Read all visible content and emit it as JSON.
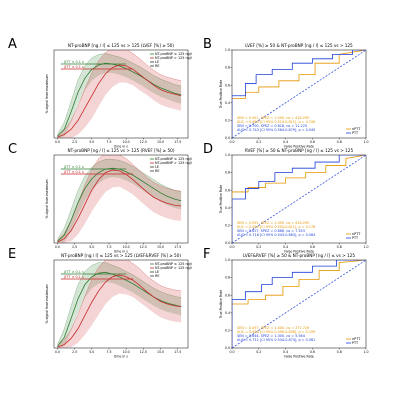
{
  "chart_data": [
    {
      "id": "A",
      "type": "line",
      "panel_label": "A",
      "title": "NT-proBNP [ng / l] ≤ 125 vs > 125 (LVEF [%] ≥ 50)",
      "xlabel": "time in s",
      "ylabel": "% signal from maximum",
      "xlim": [
        -0.5,
        19
      ],
      "ylim": [
        0,
        100
      ],
      "xticks": [
        "0.0",
        "2.5",
        "5.0",
        "7.5",
        "10.0",
        "12.5",
        "15.0",
        "17.5"
      ],
      "legend": {
        "position": "top-right",
        "entries": [
          "NT-proBNP ≤ 125 ng/l",
          "NT-proBNP > 125 ng/l",
          "LE",
          "RE"
        ]
      },
      "annotations": [
        "βTT ± 0.1 s",
        "βTT ± 0.1 s"
      ],
      "series": [
        {
          "name": "NT-proBNP ≤ 125 ng/l",
          "color": "#2e7d32",
          "x": [
            0,
            1,
            2,
            3,
            4,
            5,
            6,
            7,
            8,
            9,
            10,
            11,
            12,
            13,
            14,
            15,
            16,
            17,
            18
          ],
          "y": [
            2,
            10,
            30,
            52,
            68,
            78,
            83,
            85,
            84,
            82,
            79,
            75,
            71,
            66,
            61,
            57,
            54,
            51,
            49
          ],
          "band_width": [
            2,
            8,
            12,
            14,
            14,
            13,
            12,
            11,
            10,
            10,
            10,
            10,
            10,
            10,
            10,
            10,
            10,
            10,
            10
          ]
        },
        {
          "name": "NT-proBNP > 125 ng/l",
          "color": "#c62828",
          "x": [
            0,
            1,
            2,
            3,
            4,
            5,
            6,
            7,
            8,
            9,
            10,
            11,
            12,
            13,
            14,
            15,
            16,
            17,
            18
          ],
          "y": [
            1,
            4,
            10,
            20,
            34,
            48,
            62,
            73,
            80,
            83,
            82,
            78,
            72,
            66,
            60,
            55,
            52,
            50,
            48
          ],
          "band_width": [
            2,
            5,
            10,
            16,
            22,
            26,
            26,
            24,
            22,
            20,
            19,
            18,
            18,
            17,
            17,
            17,
            17,
            17,
            17
          ]
        }
      ]
    },
    {
      "id": "B",
      "type": "line",
      "panel_label": "B",
      "title": "LVEF [%] ≥ 50 & NT-proBNP [ng / l] ≤ 125 vs > 125",
      "xlabel": "False Positive Rate",
      "ylabel": "True Positive Rate",
      "xlim": [
        0,
        1
      ],
      "ylim": [
        0,
        1
      ],
      "xticks": [
        "0.0",
        "0.2",
        "0.4",
        "0.6",
        "0.8",
        "1.0"
      ],
      "yticks": [
        "0.0",
        "0.2",
        "0.4",
        "0.6",
        "0.8",
        "1.0"
      ],
      "legend": {
        "position": "bottom-right",
        "entries": [
          "nPTT",
          "PTT"
        ]
      },
      "stats": [
        {
          "color": "#e69500",
          "lines": [
            "SEN = 0.451, SPEZ = 1.000, co = 416.295",
            "AUC = 0.669 [CI 95% 0.519-0.811], p = 0.158"
          ]
        },
        {
          "color": "#1e3fd8",
          "lines": [
            "SEN = 0.700, SPEZ = 0.818, co = 11.225",
            "AUC = 0.743 [CI 95% 0.564-0.879], p = 0.040"
          ]
        }
      ],
      "series": [
        {
          "name": "nPTT",
          "color": "#e69500",
          "x": [
            0,
            0,
            0.1,
            0.1,
            0.2,
            0.2,
            0.35,
            0.35,
            0.5,
            0.5,
            0.62,
            0.62,
            0.8,
            0.8,
            1.0
          ],
          "y": [
            0,
            0.45,
            0.45,
            0.52,
            0.52,
            0.58,
            0.58,
            0.65,
            0.65,
            0.72,
            0.72,
            0.85,
            0.85,
            0.95,
            1.0
          ]
        },
        {
          "name": "PTT",
          "color": "#1e3fd8",
          "x": [
            0,
            0,
            0.1,
            0.1,
            0.18,
            0.18,
            0.3,
            0.3,
            0.45,
            0.45,
            0.6,
            0.6,
            0.75,
            0.75,
            0.9,
            0.9,
            1.0
          ],
          "y": [
            0,
            0.48,
            0.48,
            0.62,
            0.62,
            0.72,
            0.72,
            0.78,
            0.78,
            0.85,
            0.85,
            0.9,
            0.9,
            0.95,
            0.95,
            1.0,
            1.0
          ]
        }
      ]
    },
    {
      "id": "C",
      "type": "line",
      "panel_label": "C",
      "title": "NT-proBNP [ng / l] ≤ 125 vs > 125 (RVEF [%] ≥ 50)",
      "xlabel": "time in s",
      "ylabel": "% signal from maximum",
      "xlim": [
        -0.5,
        19
      ],
      "ylim": [
        0,
        100
      ],
      "xticks": [
        "0.0",
        "2.5",
        "5.0",
        "7.5",
        "10.0",
        "12.5",
        "15.0",
        "17.5"
      ],
      "legend": {
        "position": "top-right",
        "entries": [
          "NT-proBNP ≤ 125 ng/l",
          "NT-proBNP > 125 ng/l",
          "LE",
          "RE"
        ]
      },
      "annotations": [
        "βTT ± 0.1 s",
        "βTT ± 0.1 s"
      ],
      "series": [
        {
          "name": "NT-proBNP ≤ 125 ng/l",
          "color": "#2e7d32",
          "x": [
            0,
            1,
            2,
            3,
            4,
            5,
            6,
            7,
            8,
            9,
            10,
            11,
            12,
            13,
            14,
            15,
            16,
            17,
            18
          ],
          "y": [
            2,
            9,
            26,
            46,
            62,
            73,
            80,
            84,
            85,
            84,
            81,
            77,
            72,
            67,
            62,
            57,
            53,
            50,
            48
          ],
          "band_width": [
            2,
            8,
            12,
            14,
            14,
            13,
            12,
            11,
            10,
            10,
            10,
            10,
            10,
            10,
            10,
            10,
            10,
            10,
            10
          ]
        },
        {
          "name": "NT-proBNP > 125 ng/l",
          "color": "#c62828",
          "x": [
            0,
            1,
            2,
            3,
            4,
            5,
            6,
            7,
            8,
            9,
            10,
            11,
            12,
            13,
            14,
            15,
            16,
            17,
            18
          ],
          "y": [
            1,
            5,
            14,
            28,
            44,
            60,
            72,
            80,
            83,
            82,
            78,
            72,
            65,
            58,
            52,
            48,
            45,
            43,
            42
          ],
          "band_width": [
            2,
            6,
            12,
            18,
            22,
            24,
            24,
            22,
            20,
            18,
            18,
            17,
            17,
            17,
            17,
            17,
            17,
            17,
            17
          ]
        }
      ]
    },
    {
      "id": "D",
      "type": "line",
      "panel_label": "D",
      "title": "RVEF [%] ≥ 50 & NT-proBNP [ng / l] ≤ 125 vs > 125",
      "xlabel": "False Positive Rate",
      "ylabel": "True Positive Rate",
      "xlim": [
        0,
        1
      ],
      "ylim": [
        0,
        1
      ],
      "xticks": [
        "0.0",
        "0.2",
        "0.4",
        "0.6",
        "0.8",
        "1.0"
      ],
      "yticks": [
        "0.0",
        "0.2",
        "0.4",
        "0.6",
        "0.8",
        "1.0"
      ],
      "legend": {
        "position": "bottom-right",
        "entries": [
          "nPTT",
          "PTT"
        ]
      },
      "stats": [
        {
          "color": "#e69500",
          "lines": [
            "SEN = 0.591, SPEZ = 1.000, co = 416.295",
            "AUC = 0.659 [CI 95% 0.500-0.811], p = 0.176"
          ]
        },
        {
          "color": "#1e3fd8",
          "lines": [
            "SEN = 0.627, SPEZ = 0.886, co = 7.353",
            "AUC = 0.716 [CI 95% 0.543-0.863], p = 0.084"
          ]
        }
      ],
      "series": [
        {
          "name": "nPTT",
          "color": "#e69500",
          "x": [
            0,
            0,
            0.12,
            0.12,
            0.25,
            0.25,
            0.4,
            0.4,
            0.55,
            0.55,
            0.7,
            0.7,
            0.85,
            0.85,
            1.0
          ],
          "y": [
            0,
            0.58,
            0.58,
            0.63,
            0.63,
            0.68,
            0.68,
            0.74,
            0.74,
            0.8,
            0.8,
            0.88,
            0.88,
            0.96,
            1.0
          ]
        },
        {
          "name": "PTT",
          "color": "#1e3fd8",
          "x": [
            0,
            0,
            0.1,
            0.1,
            0.2,
            0.2,
            0.32,
            0.32,
            0.45,
            0.45,
            0.62,
            0.62,
            0.8,
            0.8,
            1.0
          ],
          "y": [
            0,
            0.5,
            0.5,
            0.62,
            0.62,
            0.7,
            0.7,
            0.8,
            0.8,
            0.85,
            0.85,
            0.92,
            0.92,
            1.0,
            1.0
          ]
        }
      ]
    },
    {
      "id": "E",
      "type": "line",
      "panel_label": "E",
      "title": "NT-proBNP [ng / l] ≤ 125 vs > 125 (LVEF&RVEF [%] ≥ 50)",
      "xlabel": "time in s",
      "ylabel": "% signal from maximum",
      "xlim": [
        -0.5,
        19
      ],
      "ylim": [
        0,
        100
      ],
      "xticks": [
        "0.0",
        "2.5",
        "5.0",
        "7.5",
        "10.0",
        "12.5",
        "15.0",
        "17.5"
      ],
      "legend": {
        "position": "top-right",
        "entries": [
          "NT-proBNP ≤ 125 ng/l",
          "NT-proBNP > 125 ng/l",
          "LE",
          "RE"
        ]
      },
      "annotations": [
        "βTT ± 0.1 s",
        "βTT ± 0.1 s"
      ],
      "series": [
        {
          "name": "NT-proBNP ≤ 125 ng/l",
          "color": "#2e7d32",
          "x": [
            0,
            1,
            2,
            3,
            4,
            5,
            6,
            7,
            8,
            9,
            10,
            11,
            12,
            13,
            14,
            15,
            16,
            17,
            18
          ],
          "y": [
            2,
            12,
            34,
            56,
            72,
            81,
            85,
            86,
            84,
            81,
            77,
            73,
            68,
            63,
            58,
            54,
            51,
            49,
            47
          ],
          "band_width": [
            2,
            10,
            14,
            16,
            15,
            13,
            12,
            11,
            10,
            10,
            10,
            10,
            10,
            10,
            10,
            10,
            10,
            10,
            10
          ]
        },
        {
          "name": "NT-proBNP > 125 ng/l",
          "color": "#c62828",
          "x": [
            0,
            1,
            2,
            3,
            4,
            5,
            6,
            7,
            8,
            9,
            10,
            11,
            12,
            13,
            14,
            15,
            16,
            17,
            18
          ],
          "y": [
            1,
            4,
            11,
            22,
            37,
            52,
            65,
            75,
            81,
            83,
            81,
            77,
            71,
            64,
            58,
            53,
            50,
            48,
            47
          ],
          "band_width": [
            2,
            5,
            10,
            16,
            22,
            26,
            27,
            25,
            23,
            21,
            20,
            19,
            19,
            18,
            18,
            18,
            18,
            18,
            18
          ]
        }
      ]
    },
    {
      "id": "F",
      "type": "line",
      "panel_label": "F",
      "title": "LVEF&RVEF [%] ≥ 50 & NT-proBNP [ng / l] ≤ vs > 125",
      "xlabel": "False Positive Rate",
      "ylabel": "True Positive Rate",
      "xlim": [
        0,
        1
      ],
      "ylim": [
        0,
        1
      ],
      "xticks": [
        "0.0",
        "0.2",
        "0.4",
        "0.6",
        "0.8",
        "1.0"
      ],
      "yticks": [
        "0.0",
        "0.2",
        "0.4",
        "0.6",
        "0.8",
        "1.0"
      ],
      "legend": {
        "position": "bottom-right",
        "entries": [
          "nPTT",
          "PTT"
        ]
      },
      "stats": [
        {
          "color": "#e69500",
          "lines": [
            "SEN = 0.497, SPEZ = 1.000, co = 372.726",
            "AUC = 0.650 [CI 95% 0.496-0.808], p = 0.199"
          ]
        },
        {
          "color": "#1e3fd8",
          "lines": [
            "SEN = 0.644, SPEZ = 1.000, co = 5.564",
            "AUC = 0.711 [CI 95% 0.534-0.874], p = 0.081"
          ]
        }
      ],
      "series": [
        {
          "name": "nPTT",
          "color": "#e69500",
          "x": [
            0,
            0,
            0.12,
            0.12,
            0.25,
            0.25,
            0.38,
            0.38,
            0.5,
            0.5,
            0.65,
            0.65,
            0.8,
            0.8,
            1.0
          ],
          "y": [
            0,
            0.5,
            0.5,
            0.55,
            0.55,
            0.6,
            0.6,
            0.7,
            0.7,
            0.78,
            0.78,
            0.88,
            0.88,
            0.97,
            1.0
          ]
        },
        {
          "name": "PTT",
          "color": "#1e3fd8",
          "x": [
            0,
            0,
            0.1,
            0.1,
            0.22,
            0.22,
            0.3,
            0.3,
            0.45,
            0.45,
            0.6,
            0.6,
            0.78,
            0.78,
            1.0
          ],
          "y": [
            0,
            0.55,
            0.55,
            0.64,
            0.64,
            0.72,
            0.72,
            0.8,
            0.8,
            0.86,
            0.86,
            0.93,
            0.93,
            1.0,
            1.0
          ]
        }
      ]
    }
  ]
}
